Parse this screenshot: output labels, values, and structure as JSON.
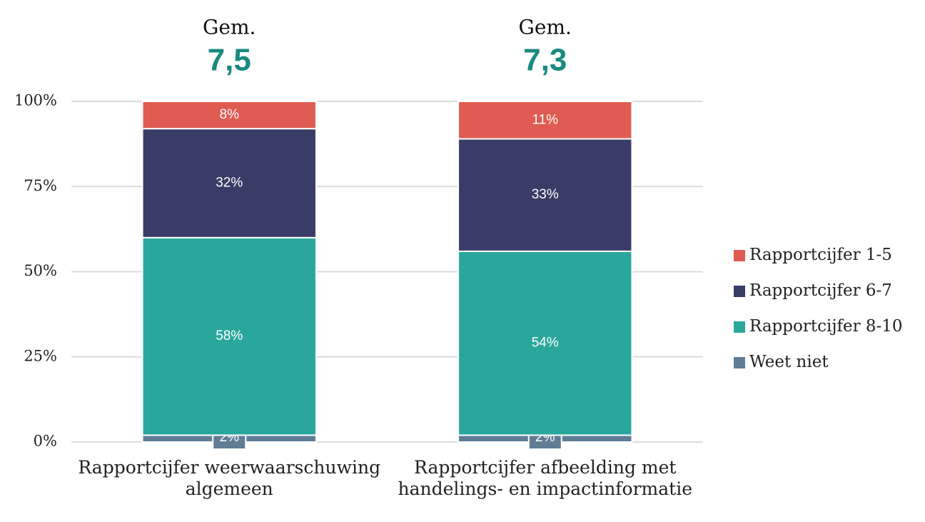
{
  "chart_data": {
    "type": "stacked_bar",
    "annotations": [
      {
        "title": "Gem.",
        "text": "7,5"
      },
      {
        "title": "Gem.",
        "text": "7,3"
      }
    ],
    "categories": [
      "Rapportcijfer weerwaarschuwing algemeen",
      "Rapportcijfer afbeelding met handelings- en impactinformatie"
    ],
    "series": [
      {
        "name": "Weet niet",
        "color": "#5f7d95",
        "values": [
          2,
          2
        ],
        "value_labels": [
          "2%",
          "2%"
        ]
      },
      {
        "name": "Rapportcijfer 8-10",
        "color": "#2aa79d",
        "values": [
          58,
          54
        ],
        "value_labels": [
          "58%",
          "54%"
        ]
      },
      {
        "name": "Rapportcijfer 6-7",
        "color": "#383c66",
        "values": [
          32,
          33
        ],
        "value_labels": [
          "32%",
          "33%"
        ]
      },
      {
        "name": "Rapportcijfer 1-5",
        "color": "#e05c52",
        "values": [
          8,
          11
        ],
        "value_labels": [
          "8%",
          "11%"
        ]
      }
    ],
    "ylim": [
      0,
      100
    ],
    "yticks": [
      {
        "value": 0,
        "label": "0%"
      },
      {
        "value": 25,
        "label": "25%"
      },
      {
        "value": 50,
        "label": "50%"
      },
      {
        "value": 75,
        "label": "75%"
      },
      {
        "value": 100,
        "label": "100%"
      }
    ],
    "grid": true,
    "legend": "right"
  }
}
